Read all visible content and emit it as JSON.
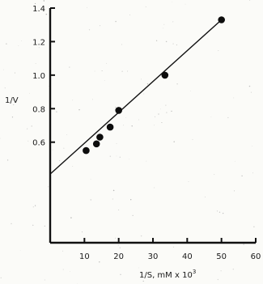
{
  "chart_data": {
    "type": "scatter",
    "title": "",
    "xlabel": "1/S, mM x 10",
    "xlabel_superscript": "3",
    "ylabel": "1/V",
    "xlim": [
      0,
      60
    ],
    "ylim": [
      0,
      1.4
    ],
    "xticks": [
      "10",
      "20",
      "30",
      "40",
      "50",
      "60"
    ],
    "yticks": [
      "0.6",
      "0.8",
      "1.0",
      "1.2",
      "1.4"
    ],
    "grid": false,
    "colors": {
      "points": "#0d0d0d",
      "line": "#111111",
      "axes": "#111111"
    },
    "series": [
      {
        "x": [
          10.5,
          13.5,
          14.5,
          17.5,
          20,
          33.5,
          50
        ],
        "y": [
          0.55,
          0.59,
          0.63,
          0.69,
          0.79,
          1.0,
          1.33
        ]
      }
    ],
    "fit_line": {
      "x": [
        0,
        50
      ],
      "y": [
        0.41,
        1.33
      ]
    }
  }
}
